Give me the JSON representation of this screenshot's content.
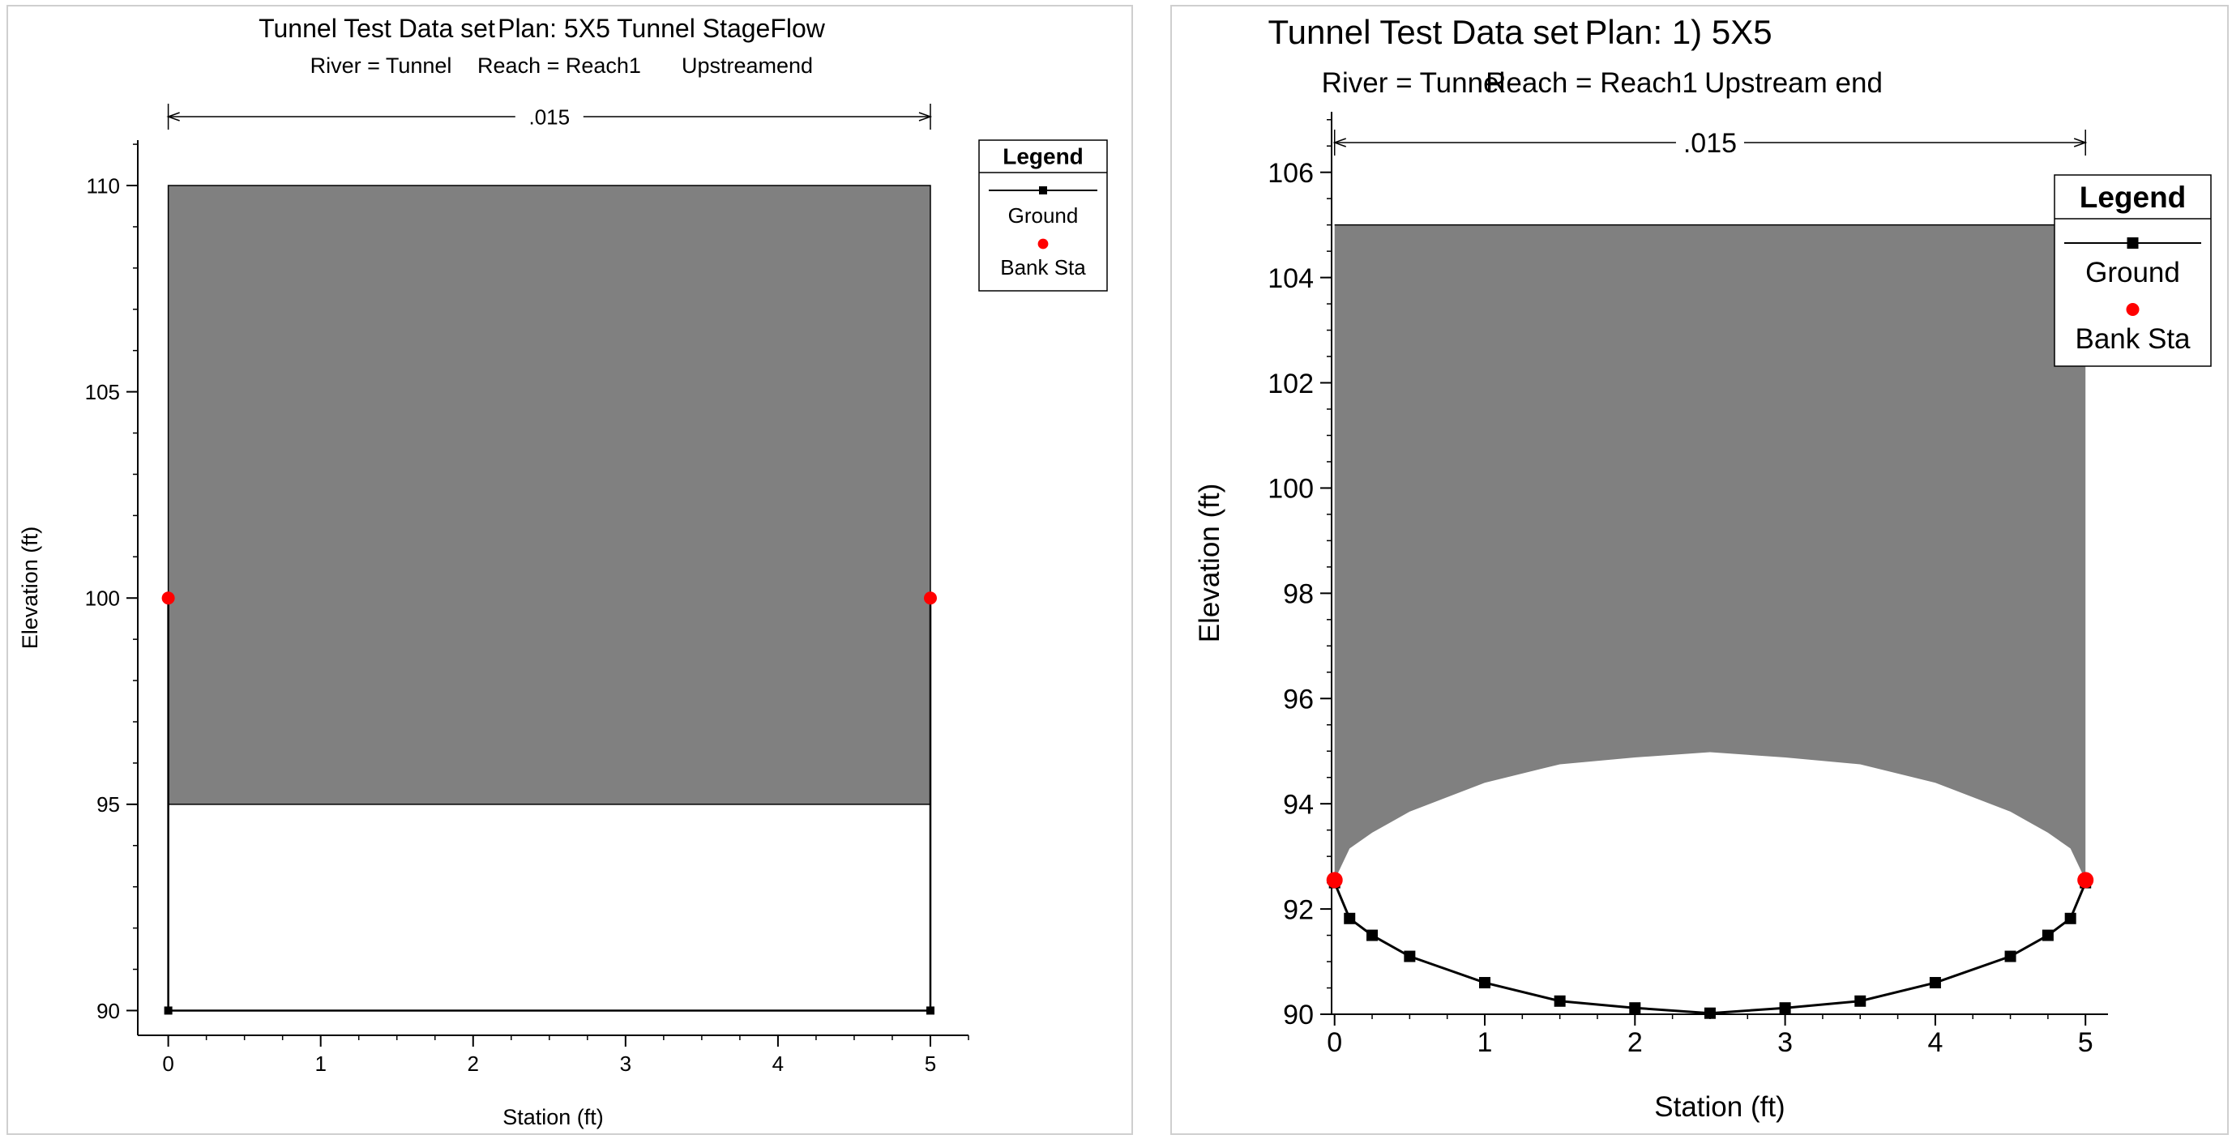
{
  "chart_data": [
    {
      "type": "area",
      "title": "Tunnel Test Data set",
      "plan_label": "Plan: 5X5 Tunnel StageFlow",
      "subtitle_river": "River = Tunnel",
      "subtitle_reach": "Reach = Reach1",
      "subtitle_location": "Upstreamend",
      "manning_n": ".015",
      "xlabel": "Station (ft)",
      "ylabel": "Elevation (ft)",
      "xlim": [
        -0.2,
        5.25
      ],
      "ylim": [
        89.4,
        111.1
      ],
      "xticks": [
        0,
        1,
        2,
        3,
        4,
        5
      ],
      "yticks": [
        90,
        95,
        100,
        105,
        110
      ],
      "xticklabels": [
        "0",
        "1",
        "2",
        "3",
        "4",
        "5"
      ],
      "yticklabels": [
        "90",
        "95",
        "100",
        "105",
        "110"
      ],
      "n_extent": [
        0,
        5
      ],
      "ground": {
        "x": [
          0,
          0,
          5,
          5
        ],
        "y": [
          100,
          90,
          90,
          100
        ]
      },
      "marker_points": {
        "x": [
          0,
          5
        ],
        "y": [
          90,
          90
        ]
      },
      "bank_stations": {
        "x": [
          0,
          5
        ],
        "y": [
          100,
          100
        ]
      },
      "obstruction": {
        "x": [
          0,
          5,
          5,
          0
        ],
        "y": [
          110,
          110,
          95,
          95
        ]
      },
      "legend": {
        "title": "Legend",
        "entries": [
          "Ground",
          "Bank Sta"
        ],
        "position": "top-right"
      },
      "colors": {
        "obstruction": "#808080",
        "ground": "#000000",
        "bank": "#ff0000"
      }
    },
    {
      "type": "area",
      "title": "Tunnel Test Data set",
      "plan_label": "Plan:      1) 5X5",
      "subtitle_river": "River = Tunnel",
      "subtitle_reach": "Reach = Reach1",
      "subtitle_location": "Upstream end",
      "manning_n": ".015",
      "xlabel": "Station (ft)",
      "ylabel": "Elevation (ft)",
      "xlim": [
        -0.02,
        5.15
      ],
      "ylim": [
        90,
        107.15
      ],
      "xticks": [
        0,
        1,
        2,
        3,
        4,
        5
      ],
      "yticks": [
        90,
        92,
        94,
        96,
        98,
        100,
        102,
        104,
        106
      ],
      "xticklabels": [
        "0",
        "1",
        "2",
        "3",
        "4",
        "5"
      ],
      "yticklabels": [
        "90",
        "92",
        "94",
        "96",
        "98",
        "100",
        "102",
        "104",
        "106"
      ],
      "n_extent": [
        0,
        5
      ],
      "ground": {
        "x": [
          0,
          0.1,
          0.25,
          0.5,
          1,
          1.5,
          2,
          2.5,
          3,
          3.5,
          4,
          4.5,
          4.75,
          4.9,
          5
        ],
        "y": [
          92.5,
          91.82,
          91.5,
          91.1,
          90.6,
          90.25,
          90.12,
          90.02,
          90.12,
          90.25,
          90.6,
          91.1,
          91.5,
          91.82,
          92.5
        ]
      },
      "bank_stations": {
        "x": [
          0,
          5
        ],
        "y": [
          92.55,
          92.55
        ]
      },
      "obstruction_top": 105,
      "obstruction_bottom": {
        "x": [
          0,
          0.1,
          0.25,
          0.5,
          1,
          1.5,
          2,
          2.5,
          3,
          3.5,
          4,
          4.5,
          4.75,
          4.9,
          5
        ],
        "y": [
          92.55,
          93.15,
          93.45,
          93.85,
          94.4,
          94.75,
          94.88,
          94.98,
          94.88,
          94.75,
          94.4,
          93.85,
          93.45,
          93.15,
          92.55
        ]
      },
      "legend": {
        "title": "Legend",
        "entries": [
          "Ground",
          "Bank Sta"
        ],
        "position": "top-right"
      },
      "colors": {
        "obstruction": "#808080",
        "ground": "#000000",
        "bank": "#ff0000"
      }
    }
  ]
}
